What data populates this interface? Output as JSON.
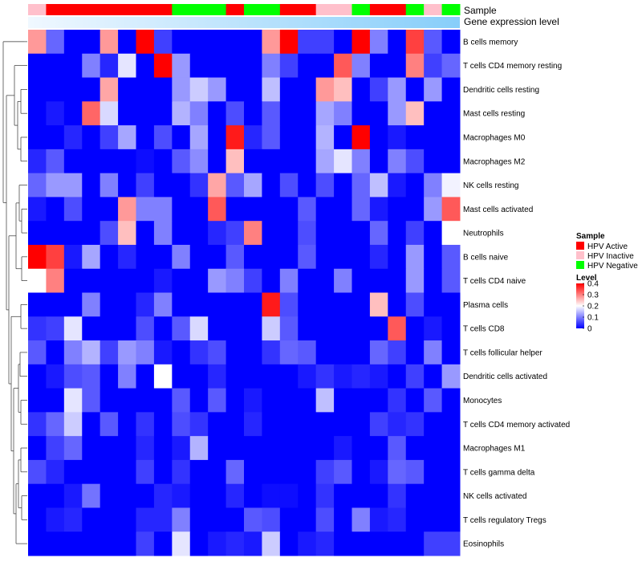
{
  "chart_data": {
    "type": "heatmap",
    "annotation_labels": {
      "sample": "Sample",
      "gene_expression": "Gene expression level"
    },
    "sample_groups": [
      "Inactive",
      "Active",
      "Active",
      "Active",
      "Active",
      "Active",
      "Active",
      "Active",
      "Negative",
      "Negative",
      "Negative",
      "Active",
      "Negative",
      "Negative",
      "Active",
      "Active",
      "Inactive",
      "Inactive",
      "Negative",
      "Active",
      "Active",
      "Negative",
      "Inactive",
      "Negative"
    ],
    "sample_colors": {
      "Active": "#ff0000",
      "Inactive": "#ffc0cb",
      "Negative": "#00ff00"
    },
    "gene_expression_gradient": [
      "#f0f8ff",
      "#87cefa"
    ],
    "rows": [
      "B cells memory",
      "T cells CD4 memory resting",
      "Dendritic cells resting",
      "Mast cells resting",
      "Macrophages M0",
      "Macrophages M2",
      "NK cells resting",
      "Mast cells activated",
      "Neutrophils",
      "B cells naive",
      "T cells CD4 naive",
      "Plasma cells",
      "T cells CD8",
      "T cells follicular helper",
      "Dendritic cells activated",
      "Monocytes",
      "T cells CD4 memory activated",
      "Macrophages M1",
      "T cells gamma delta",
      "NK cells activated",
      "T cells regulatory  Tregs",
      "Eosinophils"
    ],
    "values": [
      [
        0.28,
        0.08,
        0.0,
        0.0,
        0.28,
        0.0,
        0.4,
        0.05,
        0.0,
        0.0,
        0.0,
        0.0,
        0.0,
        0.28,
        0.4,
        0.05,
        0.05,
        0.0,
        0.4,
        0.1,
        0.0,
        0.35,
        0.07,
        0.0
      ],
      [
        0.0,
        0.0,
        0.0,
        0.1,
        0.03,
        0.18,
        0.0,
        0.4,
        0.12,
        0.0,
        0.0,
        0.0,
        0.0,
        0.1,
        0.05,
        0.0,
        0.0,
        0.33,
        0.1,
        0.0,
        0.0,
        0.3,
        0.05,
        0.08
      ],
      [
        0.0,
        0.0,
        0.0,
        0.0,
        0.27,
        0.0,
        0.0,
        0.0,
        0.12,
        0.16,
        0.12,
        0.0,
        0.0,
        0.15,
        0.0,
        0.0,
        0.28,
        0.25,
        0.0,
        0.05,
        0.12,
        0.0,
        0.12,
        0.0
      ],
      [
        0.0,
        0.02,
        0.0,
        0.32,
        0.17,
        0.0,
        0.0,
        0.0,
        0.14,
        0.1,
        0.0,
        0.06,
        0.0,
        0.07,
        0.0,
        0.0,
        0.13,
        0.1,
        0.0,
        0.0,
        0.12,
        0.25,
        0.0,
        0.0
      ],
      [
        0.0,
        0.0,
        0.03,
        0.0,
        0.05,
        0.13,
        0.0,
        0.06,
        0.0,
        0.13,
        0.0,
        0.38,
        0.03,
        0.07,
        0.0,
        0.0,
        0.14,
        0.0,
        0.42,
        0.0,
        0.02,
        0.0,
        0.0,
        0.0
      ],
      [
        0.03,
        0.07,
        0.0,
        0.0,
        0.0,
        0.0,
        0.01,
        0.0,
        0.07,
        0.11,
        0.0,
        0.25,
        0.0,
        0.0,
        0.0,
        0.0,
        0.13,
        0.18,
        0.1,
        0.0,
        0.1,
        0.06,
        0.0,
        0.0
      ],
      [
        0.08,
        0.12,
        0.12,
        0.0,
        0.1,
        0.0,
        0.05,
        0.0,
        0.0,
        0.04,
        0.27,
        0.07,
        0.13,
        0.0,
        0.06,
        0.0,
        0.06,
        0.0,
        0.08,
        0.15,
        0.02,
        0.0,
        0.1,
        0.19
      ],
      [
        0.02,
        0.0,
        0.06,
        0.0,
        0.0,
        0.28,
        0.1,
        0.1,
        0.0,
        0.0,
        0.33,
        0.0,
        0.0,
        0.0,
        0.0,
        0.07,
        0.0,
        0.0,
        0.08,
        0.02,
        0.0,
        0.0,
        0.12,
        0.33
      ],
      [
        0.0,
        0.0,
        0.0,
        0.0,
        0.06,
        0.25,
        0.0,
        0.1,
        0.0,
        0.0,
        0.03,
        0.05,
        0.3,
        0.0,
        0.0,
        0.06,
        0.0,
        0.0,
        0.0,
        0.08,
        0.0,
        0.05,
        0.0,
        0.2
      ],
      [
        0.42,
        0.35,
        0.02,
        0.13,
        0.0,
        0.03,
        0.0,
        0.0,
        0.1,
        0.0,
        0.0,
        0.07,
        0.0,
        0.0,
        0.0,
        0.07,
        0.0,
        0.0,
        0.0,
        0.03,
        0.0,
        0.12,
        0.0,
        0.07
      ],
      [
        0.2,
        0.3,
        0.0,
        0.0,
        0.0,
        0.0,
        0.0,
        0.02,
        0.0,
        0.0,
        0.12,
        0.1,
        0.05,
        0.0,
        0.1,
        0.0,
        0.0,
        0.1,
        0.0,
        0.0,
        0.0,
        0.12,
        0.0,
        0.07
      ],
      [
        0.0,
        0.0,
        0.0,
        0.1,
        0.0,
        0.0,
        0.03,
        0.1,
        0.0,
        0.0,
        0.0,
        0.0,
        0.0,
        0.38,
        0.06,
        0.0,
        0.0,
        0.0,
        0.0,
        0.25,
        0.0,
        0.06,
        0.0,
        0.0
      ],
      [
        0.04,
        0.05,
        0.18,
        0.0,
        0.0,
        0.0,
        0.06,
        0.0,
        0.07,
        0.17,
        0.0,
        0.0,
        0.0,
        0.16,
        0.07,
        0.0,
        0.0,
        0.0,
        0.0,
        0.0,
        0.33,
        0.0,
        0.02,
        0.0
      ],
      [
        0.07,
        0.0,
        0.1,
        0.14,
        0.05,
        0.12,
        0.1,
        0.02,
        0.0,
        0.04,
        0.06,
        0.0,
        0.0,
        0.04,
        0.08,
        0.07,
        0.0,
        0.0,
        0.0,
        0.08,
        0.05,
        0.0,
        0.1,
        0.0
      ],
      [
        0.0,
        0.02,
        0.06,
        0.07,
        0.0,
        0.1,
        0.0,
        0.2,
        0.0,
        0.0,
        0.03,
        0.0,
        0.0,
        0.0,
        0.0,
        0.02,
        0.04,
        0.02,
        0.03,
        0.02,
        0.0,
        0.05,
        0.0,
        0.12
      ],
      [
        0.0,
        0.0,
        0.18,
        0.07,
        0.0,
        0.0,
        0.0,
        0.0,
        0.07,
        0.0,
        0.07,
        0.0,
        0.02,
        0.0,
        0.0,
        0.0,
        0.15,
        0.0,
        0.0,
        0.0,
        0.04,
        0.0,
        0.07,
        0.0
      ],
      [
        0.04,
        0.08,
        0.16,
        0.0,
        0.07,
        0.0,
        0.04,
        0.0,
        0.06,
        0.04,
        0.0,
        0.0,
        0.03,
        0.0,
        0.0,
        0.0,
        0.0,
        0.0,
        0.0,
        0.05,
        0.03,
        0.04,
        0.0,
        0.0
      ],
      [
        0.0,
        0.05,
        0.08,
        0.0,
        0.0,
        0.0,
        0.03,
        0.0,
        0.02,
        0.14,
        0.0,
        0.0,
        0.0,
        0.0,
        0.0,
        0.0,
        0.0,
        0.02,
        0.0,
        0.0,
        0.07,
        0.0,
        0.0,
        0.0
      ],
      [
        0.06,
        0.03,
        0.0,
        0.0,
        0.0,
        0.0,
        0.05,
        0.0,
        0.04,
        0.0,
        0.0,
        0.08,
        0.0,
        0.0,
        0.0,
        0.0,
        0.05,
        0.07,
        0.0,
        0.02,
        0.08,
        0.07,
        0.0,
        0.0
      ],
      [
        0.0,
        0.0,
        0.02,
        0.09,
        0.0,
        0.0,
        0.0,
        0.03,
        0.02,
        0.0,
        0.0,
        0.03,
        0.0,
        0.01,
        0.01,
        0.0,
        0.04,
        0.0,
        0.0,
        0.0,
        0.04,
        0.0,
        0.0,
        0.0
      ],
      [
        0.0,
        0.02,
        0.03,
        0.0,
        0.0,
        0.0,
        0.03,
        0.03,
        0.1,
        0.0,
        0.0,
        0.0,
        0.07,
        0.06,
        0.0,
        0.0,
        0.06,
        0.0,
        0.1,
        0.02,
        0.03,
        0.0,
        0.0,
        0.0
      ],
      [
        0.0,
        0.0,
        0.0,
        0.0,
        0.0,
        0.0,
        0.05,
        0.0,
        0.18,
        0.0,
        0.02,
        0.03,
        0.02,
        0.16,
        0.0,
        0.02,
        0.03,
        0.0,
        0.0,
        0.0,
        0.0,
        0.0,
        0.05,
        0.05
      ]
    ],
    "legend": {
      "sample": {
        "title": "Sample",
        "items": [
          {
            "label": "HPV Active",
            "color": "#ff0000"
          },
          {
            "label": "HPV Inactive",
            "color": "#ffc0cb"
          },
          {
            "label": "HPV Negative",
            "color": "#00ff00"
          }
        ]
      },
      "level": {
        "title": "Level",
        "ticks": [
          "0.4",
          "0.3",
          "0.2",
          "0.1",
          "0"
        ],
        "range": [
          0,
          0.4
        ],
        "colors": [
          "#0000ff",
          "#ffffff",
          "#ff0000"
        ]
      }
    }
  }
}
